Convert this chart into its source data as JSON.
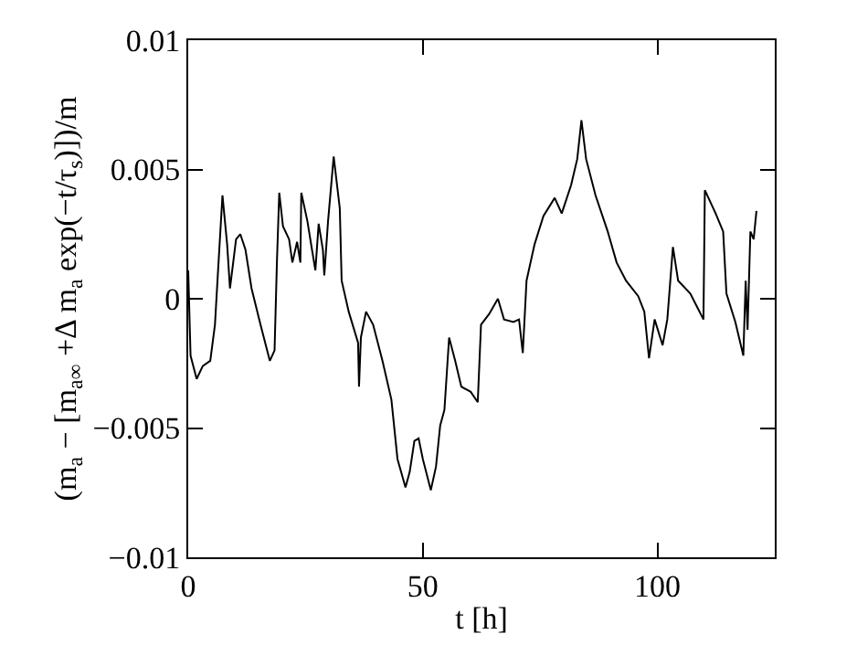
{
  "chart_data": {
    "type": "line",
    "xlabel": "t [h]",
    "ylabel": "(m$_{a}$ − [m$_{a∞}$ +Δ m$_{a}$ exp(−t/τ$_{s}$)])/m",
    "xlim": [
      0,
      125
    ],
    "ylim": [
      -0.01,
      0.01
    ],
    "xticks": [
      0,
      50,
      100
    ],
    "yticks": [
      {
        "value": -0.01,
        "label": "−0.01"
      },
      {
        "value": -0.005,
        "label": "−0.005"
      },
      0,
      0.005,
      0.01
    ],
    "grid": false,
    "marker": "none",
    "line_style": "solid",
    "series": [
      {
        "color": "#000000",
        "x": [
          0,
          0.5,
          1.8,
          3.1,
          4.7,
          5.7,
          6.3,
          7.3,
          8.3,
          8.9,
          10.2,
          11.1,
          12.2,
          13.5,
          15.4,
          17.4,
          18.4,
          18.9,
          19.4,
          20.2,
          21.5,
          22.2,
          23.2,
          23.9,
          24.1,
          25.4,
          26.2,
          27.1,
          27.8,
          28.7,
          29.0,
          29.8,
          31.0,
          32.3,
          32.7,
          34.2,
          36.2,
          36.4,
          36.8,
          37.9,
          39.4,
          41.4,
          43.3,
          44.6,
          46.3,
          47.2,
          48.2,
          49.1,
          50.0,
          51.7,
          52.8,
          53.7,
          54.6,
          55.6,
          56.9,
          58.2,
          60.2,
          61.7,
          62.4,
          64.1,
          66.0,
          67.3,
          69.3,
          70.5,
          71.3,
          72.1,
          73.8,
          75.7,
          78.1,
          79.6,
          81.6,
          82.9,
          83.8,
          84.8,
          86.8,
          89.4,
          91.3,
          93.3,
          95.9,
          97.2,
          98.2,
          99.4,
          101.1,
          102.1,
          103.3,
          104.4,
          107.0,
          109.8,
          110.1,
          112.4,
          114.0,
          114.7,
          116.6,
          118.3,
          118.8,
          119.2,
          119.8,
          120.5,
          121.1
        ],
        "values": [
          0.0011,
          -0.0022,
          -0.0031,
          -0.0026,
          -0.0024,
          -0.001,
          0.0009,
          0.004,
          0.0021,
          0.0004,
          0.0023,
          0.0025,
          0.0019,
          0.0004,
          -0.001,
          -0.0024,
          -0.002,
          0.0014,
          0.0041,
          0.0028,
          0.0023,
          0.0014,
          0.0022,
          0.0014,
          0.0041,
          0.003,
          0.0021,
          0.0011,
          0.0029,
          0.0019,
          0.0009,
          0.003,
          0.0055,
          0.0035,
          0.0007,
          -0.0005,
          -0.0017,
          -0.0034,
          -0.0015,
          -0.0005,
          -0.001,
          -0.0024,
          -0.0039,
          -0.0062,
          -0.0073,
          -0.0067,
          -0.0055,
          -0.0054,
          -0.0062,
          -0.0074,
          -0.0065,
          -0.0049,
          -0.0043,
          -0.0015,
          -0.0024,
          -0.0034,
          -0.0036,
          -0.004,
          -0.001,
          -0.0006,
          0,
          -0.0008,
          -0.0009,
          -0.0008,
          -0.0021,
          0.0007,
          0.0021,
          0.0032,
          0.0039,
          0.0033,
          0.0044,
          0.0054,
          0.0069,
          0.0054,
          0.004,
          0.0026,
          0.0014,
          0.0007,
          0.0001,
          -0.0005,
          -0.0023,
          -0.0008,
          -0.0018,
          -0.0008,
          0.002,
          0.0007,
          0.0002,
          -0.0008,
          0.0042,
          0.0033,
          0.0026,
          0.0002,
          -0.0009,
          -0.0022,
          0.0007,
          -0.0012,
          0.0026,
          0.0023,
          0.0034
        ]
      }
    ]
  }
}
